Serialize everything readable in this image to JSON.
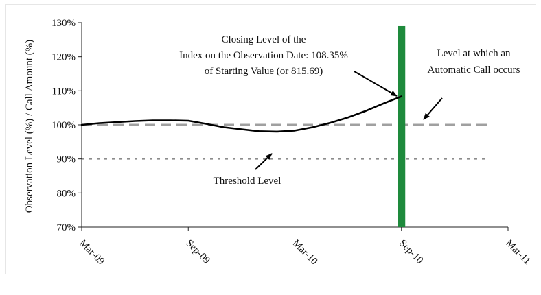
{
  "chart_data": {
    "type": "line",
    "title": "",
    "ylabel": "Observation Level (%) / Call Amount (%)",
    "xlabel": "",
    "x_ticks": [
      "Mar-09",
      "Sep-09",
      "Mar-10",
      "Sep-10",
      "Mar-11"
    ],
    "y_ticks": [
      "70%",
      "80%",
      "90%",
      "100%",
      "110%",
      "120%",
      "130%"
    ],
    "ylim": [
      70,
      130
    ],
    "xlim": [
      "Mar-09",
      "Mar-11"
    ],
    "grid": false,
    "legend": "none",
    "series": [
      {
        "style": "solid",
        "color": "#000000",
        "x": [
          "Mar-09",
          "Apr-09",
          "May-09",
          "Jun-09",
          "Jul-09",
          "Aug-09",
          "Sep-09",
          "Oct-09",
          "Nov-09",
          "Dec-09",
          "Jan-10",
          "Feb-10",
          "Mar-10",
          "Apr-10",
          "May-10",
          "Jun-10",
          "Jul-10",
          "Aug-10",
          "Sep-10"
        ],
        "values": [
          100.0,
          100.5,
          100.8,
          101.1,
          101.3,
          101.3,
          101.2,
          100.3,
          99.3,
          98.7,
          98.1,
          98.0,
          98.3,
          99.3,
          100.6,
          102.2,
          104.1,
          106.3,
          108.35
        ]
      },
      {
        "style": "dashed",
        "color": "#a0a0a0",
        "x": [
          "Mar-09",
          "Mar-11"
        ],
        "values": [
          100,
          100
        ]
      },
      {
        "style": "dotted",
        "color": "#8c8c8c",
        "x": [
          "Mar-09",
          "Mar-11"
        ],
        "values": [
          90,
          90
        ]
      }
    ],
    "bars": [
      {
        "x": "Sep-10",
        "value": 129,
        "color": "#1e8a3c"
      }
    ],
    "annotations": [
      {
        "lines": [
          "Closing Level of the",
          "Index on the Observation Date: 108.35%",
          "of Starting Value (or 815.69)"
        ]
      },
      {
        "lines": [
          "Level at which an",
          "Automatic Call occurs"
        ]
      },
      {
        "lines": [
          "Threshold Level"
        ]
      }
    ]
  }
}
